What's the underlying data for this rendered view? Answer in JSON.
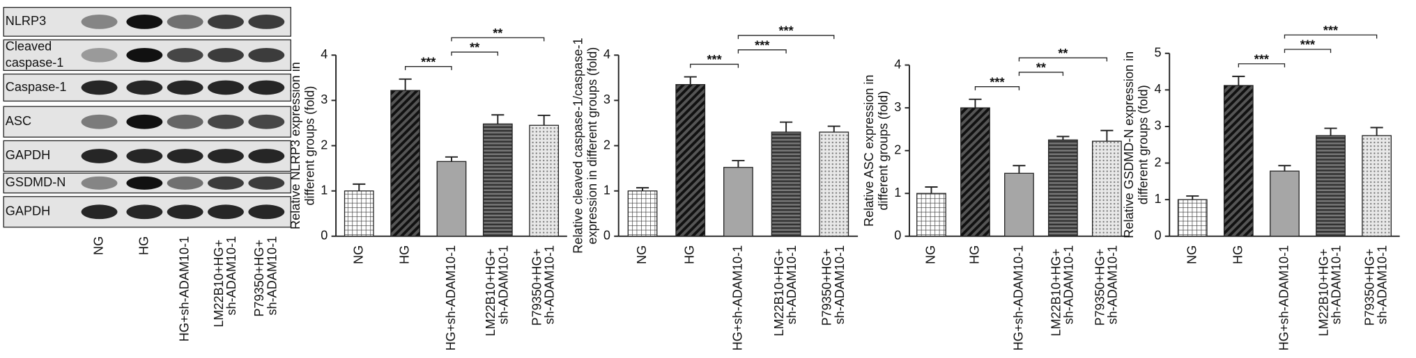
{
  "blot": {
    "rows": [
      [
        "NLRP3"
      ],
      [
        "Cleaved",
        "caspase-1"
      ],
      [
        "Caspase-1"
      ],
      [
        "ASC"
      ],
      [
        "GAPDH"
      ],
      [
        "GSDMD-N"
      ],
      [
        "GAPDH"
      ]
    ],
    "lanes": [
      "NG",
      "HG",
      "HG+sh-ADAM10-1",
      "LM22B10+HG+ sh-ADAM10-1",
      "P79350+HG+ sh-ADAM10-1"
    ]
  },
  "chart_data": [
    {
      "type": "bar",
      "ylabel": [
        "Relative NLRP3 expression in",
        "different groups (fold)"
      ],
      "categories": [
        "NG",
        "HG",
        "HG+sh-ADAM10-1",
        "LM22B10+HG+ sh-ADAM10-1",
        "P79350+HG+ sh-ADAM10-1"
      ],
      "values": [
        1.0,
        3.22,
        1.65,
        2.48,
        2.45
      ],
      "errors": [
        0.15,
        0.25,
        0.1,
        0.2,
        0.22
      ],
      "ylim": [
        0,
        4
      ],
      "yticks": [
        0,
        1,
        2,
        3,
        4
      ],
      "annotations": [
        {
          "label": "***",
          "between": [
            1,
            2
          ]
        },
        {
          "label": "**",
          "between": [
            2,
            3
          ]
        },
        {
          "label": "**",
          "between": [
            2,
            4
          ]
        }
      ]
    },
    {
      "type": "bar",
      "ylabel": [
        "Relative cleaved caspase-1/caspase-1",
        "expression in different groups (fold)"
      ],
      "categories": [
        "NG",
        "HG",
        "HG+sh-ADAM10-1",
        "LM22B10+HG+ sh-ADAM10-1",
        "P79350+HG+ sh-ADAM10-1"
      ],
      "values": [
        1.0,
        3.35,
        1.52,
        2.3,
        2.3
      ],
      "errors": [
        0.07,
        0.17,
        0.15,
        0.22,
        0.13
      ],
      "ylim": [
        0,
        4
      ],
      "yticks": [
        0,
        1,
        2,
        3,
        4
      ],
      "annotations": [
        {
          "label": "***",
          "between": [
            1,
            2
          ]
        },
        {
          "label": "***",
          "between": [
            2,
            3
          ]
        },
        {
          "label": "***",
          "between": [
            2,
            4
          ]
        }
      ]
    },
    {
      "type": "bar",
      "ylabel": [
        "Relative ASC expression in",
        "different groups (fold)"
      ],
      "categories": [
        "NG",
        "HG",
        "HG+sh-ADAM10-1",
        "LM22B10+HG+ sh-ADAM10-1",
        "P79350+HG+ sh-ADAM10-1"
      ],
      "values": [
        1.0,
        3.0,
        1.47,
        2.25,
        2.22
      ],
      "errors": [
        0.15,
        0.2,
        0.18,
        0.08,
        0.25
      ],
      "ylim": [
        0,
        4
      ],
      "yticks": [
        0,
        1,
        2,
        3,
        4
      ],
      "annotations": [
        {
          "label": "***",
          "between": [
            1,
            2
          ]
        },
        {
          "label": "**",
          "between": [
            2,
            3
          ]
        },
        {
          "label": "**",
          "between": [
            2,
            4
          ]
        }
      ]
    },
    {
      "type": "bar",
      "ylabel": [
        "Relative GSDMD-N expression in",
        "different groups (fold)"
      ],
      "categories": [
        "NG",
        "HG",
        "HG+sh-ADAM10-1",
        "LM22B10+HG+ sh-ADAM10-1",
        "P79350+HG+ sh-ADAM10-1"
      ],
      "values": [
        1.0,
        4.12,
        1.78,
        2.75,
        2.75
      ],
      "errors": [
        0.1,
        0.25,
        0.15,
        0.2,
        0.22
      ],
      "ylim": [
        0,
        5
      ],
      "yticks": [
        0,
        1,
        2,
        3,
        4,
        5
      ],
      "annotations": [
        {
          "label": "***",
          "between": [
            1,
            2
          ]
        },
        {
          "label": "***",
          "between": [
            2,
            3
          ]
        },
        {
          "label": "***",
          "between": [
            2,
            4
          ]
        }
      ]
    }
  ]
}
